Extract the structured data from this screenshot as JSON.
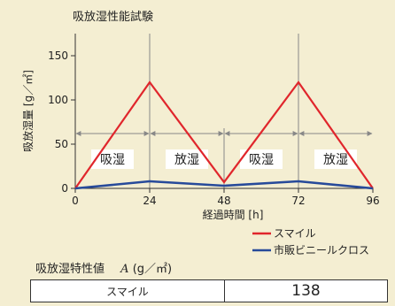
{
  "title": "吸放湿性能試験",
  "property": {
    "label": "吸放湿特性値",
    "symbol": "A",
    "unit": "(g／㎡)"
  },
  "result_table": {
    "name": "スマイル",
    "value": "138"
  },
  "colors": {
    "series_smile": "#e0262c",
    "series_commercial": "#274a9a",
    "grid": "#888888",
    "background": "#f4eed2",
    "phase_label_bg": "#ffffff"
  },
  "chart_data": {
    "type": "line",
    "title": "吸放湿性能試験",
    "xlabel": "経過時間 [h]",
    "ylabel": "吸放湿量 [g／㎡]",
    "xlim": [
      0,
      96
    ],
    "ylim": [
      0,
      175
    ],
    "x_ticks": [
      0,
      24,
      48,
      72,
      96
    ],
    "y_ticks": [
      0,
      50,
      100,
      150
    ],
    "grid": false,
    "vertical_lines_at": [
      24,
      72
    ],
    "phase_labels": [
      "吸湿",
      "放湿",
      "吸湿",
      "放湿"
    ],
    "legend_position": "bottom-right",
    "series": [
      {
        "name": "スマイル",
        "color": "#e0262c",
        "x": [
          0,
          24,
          48,
          72,
          96
        ],
        "y": [
          0,
          120,
          7,
          120,
          0
        ]
      },
      {
        "name": "市販ビニールクロス",
        "color": "#274a9a",
        "x": [
          0,
          24,
          48,
          72,
          96
        ],
        "y": [
          0,
          8,
          3,
          8,
          0
        ]
      }
    ]
  }
}
